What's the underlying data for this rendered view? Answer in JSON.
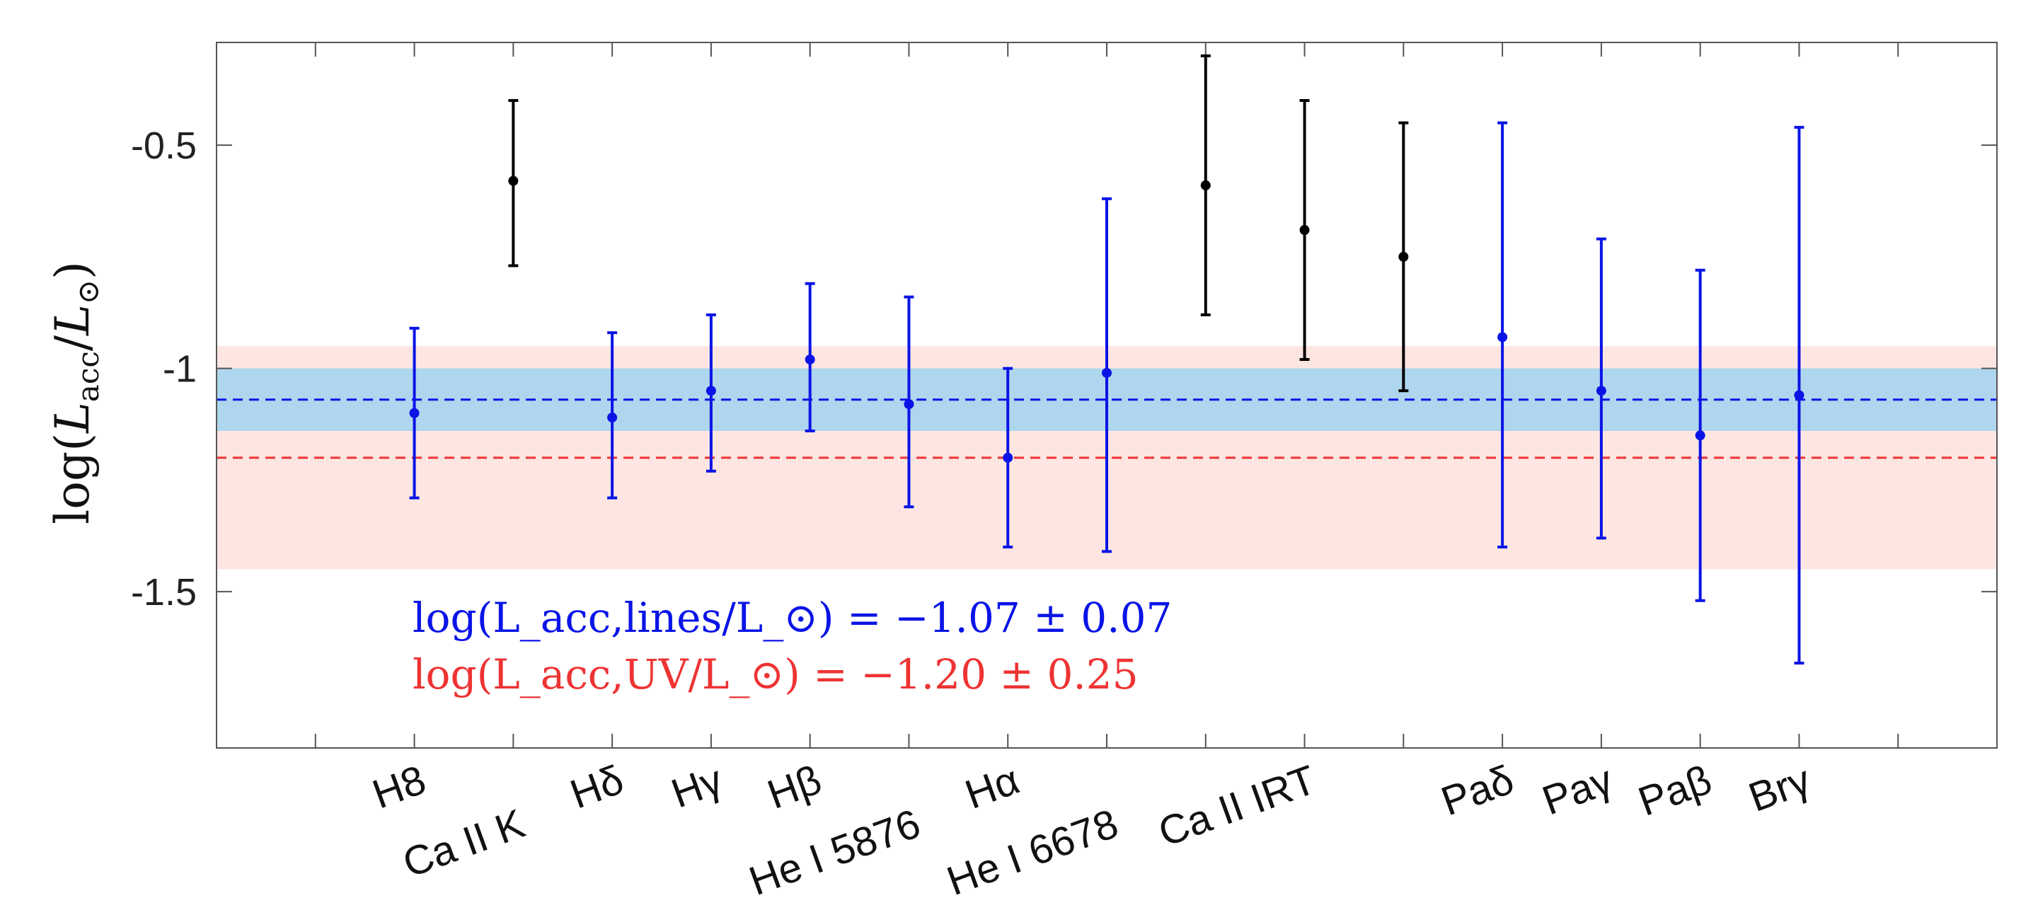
{
  "chart_data": {
    "type": "scatter",
    "title": "",
    "xlabel": "",
    "ylabel": "log(L_acc/L_⊙)",
    "ylim": [
      -1.85,
      -0.27
    ],
    "yticks": [
      -0.5,
      -1,
      -1.5
    ],
    "ytick_labels": [
      "-0.5",
      "-1",
      "-1.5"
    ],
    "grid": false,
    "colors": {
      "lines": "#0a14e6",
      "irt": "#000000",
      "uv": "#ee3333",
      "band_uv": "#fde6e2",
      "band_lines": "#aed6ee"
    },
    "points": [
      {
        "slot": 2,
        "label": "H8",
        "y": -1.1,
        "lo": -1.29,
        "hi": -0.91,
        "group": "lines"
      },
      {
        "slot": 3,
        "label": "Ca II K",
        "y": -0.58,
        "lo": -0.77,
        "hi": -0.4,
        "group": "irt"
      },
      {
        "slot": 4,
        "label": "Hδ",
        "y": -1.11,
        "lo": -1.29,
        "hi": -0.92,
        "group": "lines"
      },
      {
        "slot": 5,
        "label": "Hγ",
        "y": -1.05,
        "lo": -1.23,
        "hi": -0.88,
        "group": "lines"
      },
      {
        "slot": 6,
        "label": "Hβ",
        "y": -0.98,
        "lo": -1.14,
        "hi": -0.81,
        "group": "lines"
      },
      {
        "slot": 7,
        "label": "He I 5876",
        "y": -1.08,
        "lo": -1.31,
        "hi": -0.84,
        "group": "lines"
      },
      {
        "slot": 8,
        "label": "Hα",
        "y": -1.2,
        "lo": -1.4,
        "hi": -1.0,
        "group": "lines"
      },
      {
        "slot": 9,
        "label": "He I 6678",
        "y": -1.01,
        "lo": -1.41,
        "hi": -0.62,
        "group": "lines"
      },
      {
        "slot": 10,
        "label": "Ca II IRT",
        "y": -0.59,
        "lo": -0.88,
        "hi": -0.3,
        "group": "irt"
      },
      {
        "slot": 11,
        "label": "",
        "y": -0.69,
        "lo": -0.98,
        "hi": -0.4,
        "group": "irt"
      },
      {
        "slot": 12,
        "label": "",
        "y": -0.75,
        "lo": -1.05,
        "hi": -0.45,
        "group": "irt"
      },
      {
        "slot": 13,
        "label": "Paδ",
        "y": -0.93,
        "lo": -1.4,
        "hi": -0.45,
        "group": "lines"
      },
      {
        "slot": 14,
        "label": "Paγ",
        "y": -1.05,
        "lo": -1.38,
        "hi": -0.71,
        "group": "lines"
      },
      {
        "slot": 15,
        "label": "Paβ",
        "y": -1.15,
        "lo": -1.52,
        "hi": -0.78,
        "group": "lines"
      },
      {
        "slot": 16,
        "label": "Brγ",
        "y": -1.06,
        "lo": -1.66,
        "hi": -0.46,
        "group": "lines"
      }
    ],
    "x_tick_labels": [
      {
        "slot": 2,
        "text": "H8",
        "row": 1
      },
      {
        "slot": 3,
        "text": "Ca II K",
        "row": 2
      },
      {
        "slot": 4,
        "text": "Hδ",
        "row": 1
      },
      {
        "slot": 5,
        "text": "Hγ",
        "row": 1
      },
      {
        "slot": 6,
        "text": "Hβ",
        "row": 1
      },
      {
        "slot": 7,
        "text": "He I 5876",
        "row": 2
      },
      {
        "slot": 8,
        "text": "Hα",
        "row": 1
      },
      {
        "slot": 9,
        "text": "He I 6678",
        "row": 2
      },
      {
        "slot": 11,
        "text": "Ca II IRT",
        "row": 1
      },
      {
        "slot": 13,
        "text": "Paδ",
        "row": 1
      },
      {
        "slot": 14,
        "text": "Paγ",
        "row": 1
      },
      {
        "slot": 15,
        "text": "Paβ",
        "row": 1
      },
      {
        "slot": 16,
        "text": "Brγ",
        "row": 1
      }
    ],
    "lines_mean": {
      "value": -1.07,
      "err": 0.07,
      "band": [
        -1.14,
        -1.0
      ],
      "label": "log(L_acc,lines/L_⊙) = −1.07 ± 0.07"
    },
    "uv_mean": {
      "value": -1.2,
      "err": 0.25,
      "band": [
        -1.45,
        -0.95
      ],
      "label": "log(L_acc,UV/L_⊙) = −1.20 ± 0.25"
    }
  }
}
